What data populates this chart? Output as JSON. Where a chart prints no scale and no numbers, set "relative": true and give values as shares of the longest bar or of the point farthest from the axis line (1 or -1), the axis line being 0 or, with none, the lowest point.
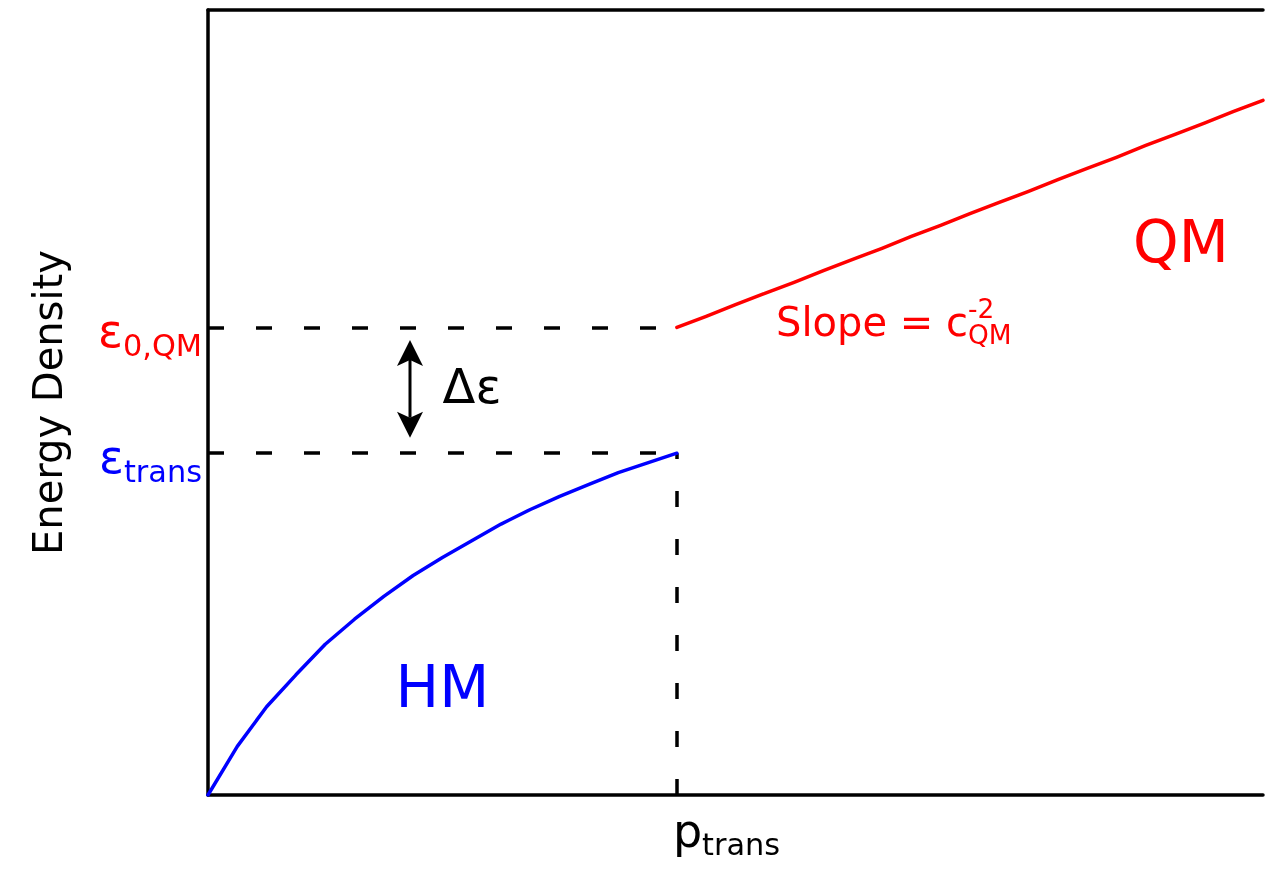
{
  "chart_data": {
    "type": "line",
    "relative": true,
    "ylabel": "Energy Density",
    "marker": "none",
    "categories": [
      null,
      null,
      null,
      null,
      null,
      null,
      null,
      null,
      null,
      null,
      null,
      null,
      null,
      null,
      null,
      null,
      null,
      null,
      null,
      null,
      null,
      null,
      null,
      null,
      null,
      null,
      null,
      null,
      null,
      null,
      null,
      null,
      null,
      null,
      null,
      null,
      null
    ],
    "series": [
      {
        "name": "HM",
        "color": "#0000ff",
        "values": [
          0,
          0.07,
          0.127,
          0.173,
          0.217,
          0.253,
          0.286,
          0.316,
          0.342,
          0.366,
          0.39,
          0.411,
          0.43,
          0.447,
          0.464,
          0.478,
          0.492,
          null,
          null,
          null,
          null,
          null,
          null,
          null,
          null,
          null,
          null,
          null,
          null,
          null,
          null,
          null,
          null,
          null,
          null,
          null,
          null
        ]
      },
      {
        "name": "QM",
        "color": "#ff0000",
        "values": [
          null,
          null,
          null,
          null,
          null,
          null,
          null,
          null,
          null,
          null,
          null,
          null,
          null,
          null,
          null,
          null,
          0.673,
          0.689,
          0.706,
          0.722,
          0.738,
          0.755,
          0.771,
          0.787,
          0.804,
          0.82,
          0.837,
          0.853,
          0.869,
          0.886,
          0.902,
          0.918,
          0.935,
          0.951,
          0.967,
          0.984,
          1
        ]
      }
    ],
    "ref_lines": [
      {
        "axis": "y",
        "value": 0.673,
        "label": "ε$_{0,QM}$",
        "color": "#000000",
        "line_style": "dashed"
      },
      {
        "axis": "y",
        "value": 0.492,
        "label": "ε$_{trans}$",
        "color": "#000000",
        "line_style": "dashed"
      }
    ],
    "annotations": [
      "Δε",
      "Slope = c$_{QM}$$^{-2}$",
      "p$_{trans}$"
    ]
  }
}
